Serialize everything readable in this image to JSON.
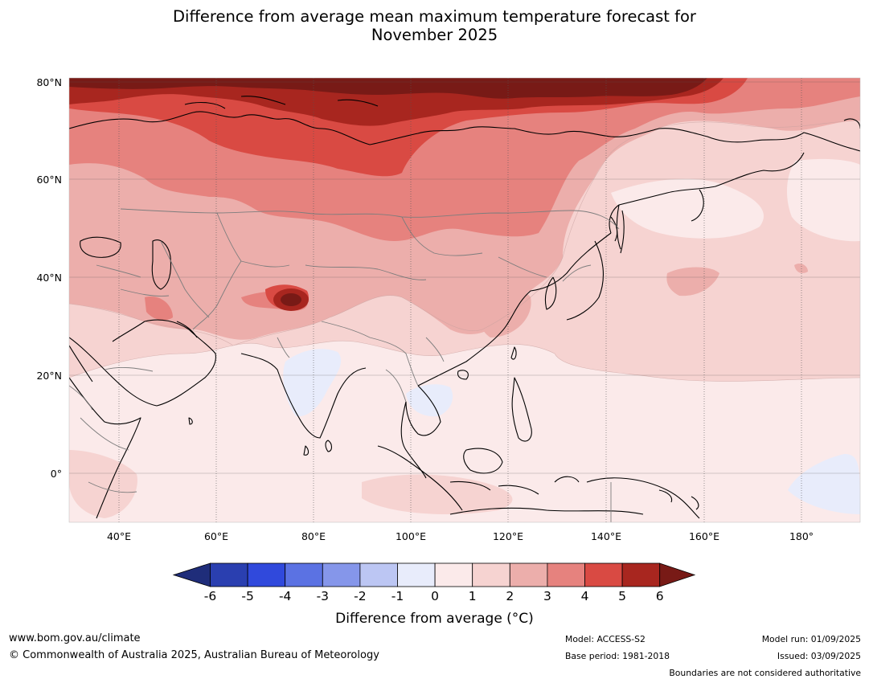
{
  "title_line1": "Difference from average mean maximum temperature forecast for",
  "title_line2": "November 2025",
  "map": {
    "lat_labels": [
      "80°N",
      "60°N",
      "40°N",
      "20°N",
      "0°"
    ],
    "lon_labels": [
      "40°E",
      "60°E",
      "80°E",
      "100°E",
      "120°E",
      "140°E",
      "160°E",
      "180°"
    ],
    "extent": {
      "lon": [
        30,
        192
      ],
      "lat": [
        -10,
        81
      ]
    },
    "notable_features": "Strongest warm anomaly (>6°C) across the Arctic coast of Siberia and a localized hotspot over the western Himalaya; weak cool anomalies (-1 to 0°C) over central India, mainland Southeast Asia and the equatorial western Pacific."
  },
  "colorbar": {
    "ticks": [
      "-6",
      "-5",
      "-4",
      "-3",
      "-2",
      "-1",
      "0",
      "1",
      "2",
      "3",
      "4",
      "5",
      "6"
    ],
    "colors": [
      "#1f2d7a",
      "#2a3fb0",
      "#3049dc",
      "#5b72e3",
      "#8596ea",
      "#bcc6f3",
      "#e8ecfb",
      "#fbeaea",
      "#f6d3d1",
      "#ecaeab",
      "#e6827e",
      "#d94a43",
      "#a8261f",
      "#781a16"
    ],
    "label": "Difference from average (°C)"
  },
  "footer": {
    "url": "www.bom.gov.au/climate",
    "copyright": "© Commonwealth of Australia 2025, Australian Bureau of Meteorology",
    "model": "Model: ACCESS-S2",
    "base_period": "Base period: 1981-2018",
    "model_run": "Model run: 01/09/2025",
    "issued": "Issued: 03/09/2025",
    "boundaries_note": "Boundaries are not considered authoritative"
  }
}
